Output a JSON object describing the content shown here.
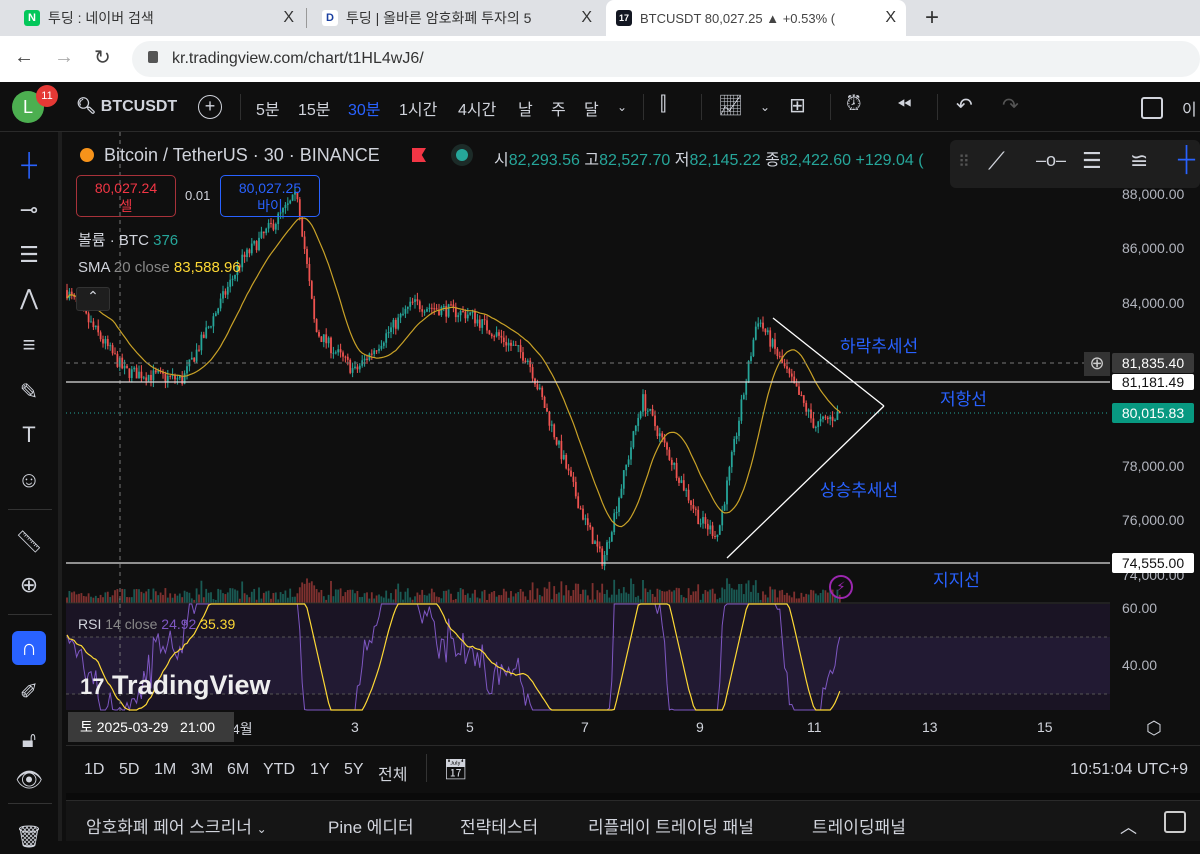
{
  "browser": {
    "tabs": [
      {
        "title": "투딩 : 네이버 검색",
        "icon": "naver-icon",
        "color": "#03c75a"
      },
      {
        "title": "투딩 | 올바른 암호화폐 투자의 5",
        "icon": "tooding-icon",
        "color": "#1a3fa0"
      },
      {
        "title": "BTCUSDT 80,027.25 ▲ +0.53% (",
        "icon": "tradingview-icon",
        "color": "#000000",
        "active": true
      }
    ],
    "new_tab": "+",
    "close": "X",
    "url": "kr.tradingview.com/chart/t1HL4wJ6/"
  },
  "toolbar": {
    "avatar_letter": "L",
    "notification_count": "11",
    "symbol": "BTCUSDT",
    "intervals": [
      "5분",
      "15분",
      "30분",
      "1시간",
      "4시간",
      "날",
      "주",
      "달"
    ],
    "active_interval": "30분",
    "right_label": "이"
  },
  "legend": {
    "title": "Bitcoin / TetherUS · 30 · BINANCE",
    "o_label": "시",
    "o": "82,293.56",
    "h_label": "고",
    "h": "82,527.70",
    "l_label": "저",
    "l": "82,145.22",
    "c_label": "종",
    "c": "82,422.60",
    "change": "+129.04 (",
    "sell_price": "80,027.24",
    "sell_label": "셀",
    "spread": "0.01",
    "buy_price": "80,027.25",
    "buy_label": "바이",
    "volume_label": "볼륨 · BTC",
    "volume_value": "376",
    "sma_label": "SMA",
    "sma_params": "20 close",
    "sma_value": "83,588.96"
  },
  "price_scale": {
    "ticks": [
      "88,000.00",
      "86,000.00",
      "84,000.00",
      "78,000.00",
      "76,000.00",
      "74,000.00"
    ],
    "crosshair_price": "81,835.40",
    "resistance_price": "81,181.49",
    "last_price": "80,015.83",
    "support_price": "74,555.00"
  },
  "annotations": {
    "downtrend": "하락추세선",
    "resistance": "저항선",
    "uptrend": "상승추세선",
    "support": "지지선"
  },
  "rsi": {
    "label": "RSI",
    "params": "14 close",
    "value": "24.92",
    "ma_value": "35.39",
    "ticks": [
      "60.00",
      "40.00"
    ]
  },
  "watermark": "TradingView",
  "time_axis": {
    "crosshair_label": "토 2025-03-29   21:00",
    "ticks": [
      "4월",
      "3",
      "5",
      "7",
      "9",
      "11",
      "13",
      "15"
    ]
  },
  "chart": {
    "price_path": [
      [
        "03-29",
        84500
      ],
      [
        "03-30",
        81500
      ],
      [
        "03-31",
        81200
      ],
      [
        "04-01",
        85500
      ],
      [
        "04-02",
        88000
      ],
      [
        "04-02",
        83000
      ],
      [
        "04-03",
        81500
      ],
      [
        "04-04",
        84000
      ],
      [
        "04-05",
        83600
      ],
      [
        "04-06",
        82000
      ],
      [
        "04-07",
        76000
      ],
      [
        "04-07",
        74500
      ],
      [
        "04-08",
        80500
      ],
      [
        "04-09",
        76000
      ],
      [
        "04-09",
        75500
      ],
      [
        "04-10",
        83500
      ],
      [
        "04-11",
        79500
      ],
      [
        "04-11",
        80016
      ]
    ],
    "up_color": "#26a69a",
    "down_color": "#ef5350",
    "sma_color": "#c9a227",
    "rsi_color": "#7e57c2",
    "rsi_ma_color": "#fdd835"
  },
  "range_bar": {
    "ranges": [
      "1D",
      "5D",
      "1M",
      "3M",
      "6M",
      "YTD",
      "1Y",
      "5Y",
      "전체"
    ],
    "clock": "10:51:04 UTC+9"
  },
  "bottom_panel": {
    "tabs": [
      "암호화폐 페어 스크리너",
      "Pine 에디터",
      "전략테스터",
      "리플레이 트레이딩 패널",
      "트레이딩패널"
    ]
  }
}
